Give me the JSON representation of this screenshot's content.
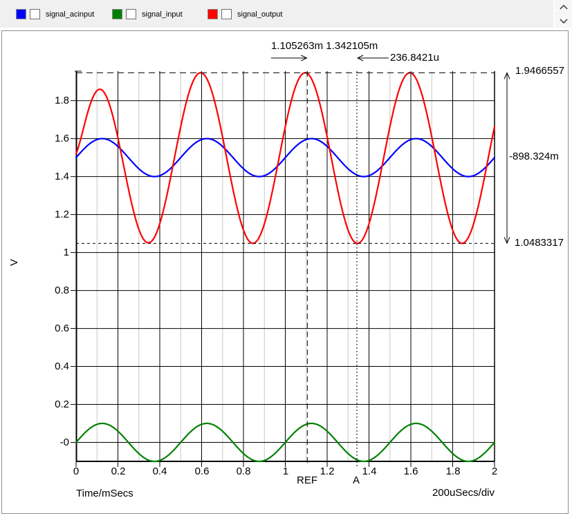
{
  "legend": {
    "items": [
      {
        "label": "signal_acinput",
        "color": "#0000ff",
        "checked": false
      },
      {
        "label": "signal_input",
        "color": "#008000",
        "checked": false
      },
      {
        "label": "signal_output",
        "color": "#ff0000",
        "checked": false
      }
    ]
  },
  "scrollbar": {
    "up_icon": "chevron-up",
    "down_icon": "chevron-down"
  },
  "chart_data": {
    "type": "line",
    "xlabel": "Time/mSecs",
    "x_div_label": "200uSecs/div",
    "ylabel": "V",
    "x_range_ms": [
      0,
      2
    ],
    "y_range": [
      -0.1,
      1.9553
    ],
    "x_major_step": 0.2,
    "x_minor_step": 0.1,
    "y_major_step": 0.2,
    "grid": {
      "major_color": "#000000",
      "minor_color": "#c8c8c8"
    },
    "x_ticks": [
      "0",
      "0.2",
      "0.4",
      "0.6",
      "0.8",
      "1",
      "1.2",
      "1.4",
      "1.6",
      "1.8",
      "2"
    ],
    "y_ticks": [
      {
        "value": 1.8,
        "label": "1.8"
      },
      {
        "value": 1.6,
        "label": "1.6"
      },
      {
        "value": 1.4,
        "label": "1.4"
      },
      {
        "value": 1.2,
        "label": "1.2"
      },
      {
        "value": 1.0,
        "label": "1"
      },
      {
        "value": 0.8,
        "label": "0.8"
      },
      {
        "value": 0.6,
        "label": "0.6"
      },
      {
        "value": 0.4,
        "label": "0.4"
      },
      {
        "value": 0.2,
        "label": "0.2"
      },
      {
        "value": 0.0,
        "label": "-0"
      }
    ],
    "series": [
      {
        "name": "signal_acinput",
        "color": "#0000ff",
        "offset": 1.5,
        "amplitude": 0.1,
        "period_ms": 0.5,
        "phase_ms": 0,
        "rise_tau": 0,
        "rise_t0": 0
      },
      {
        "name": "signal_input",
        "color": "#008000",
        "offset": 0,
        "amplitude": 0.1,
        "period_ms": 0.5,
        "phase_ms": 0,
        "rise_tau": 0,
        "rise_t0": 0
      },
      {
        "name": "signal_output",
        "color": "#ff0000",
        "offset": 1.4975,
        "amplitude": 0.4492,
        "period_ms": 0.5,
        "phase_ms": 0.03,
        "rise_tau": 0.07,
        "rise_t0": 0.01
      }
    ],
    "cursors": {
      "ref": {
        "label": "REF",
        "x_ms": 1.105263,
        "y_v": 1.9466557
      },
      "a": {
        "label": "A",
        "x_ms": 1.342105,
        "y_v": 1.0483317
      },
      "readout_x": "1.105263m 1.342105m",
      "delta_x_label": "236.8421u",
      "ref_y_label": "1.9466557",
      "a_y_label": "1.0483317",
      "delta_y_label": "-898.324m"
    }
  }
}
